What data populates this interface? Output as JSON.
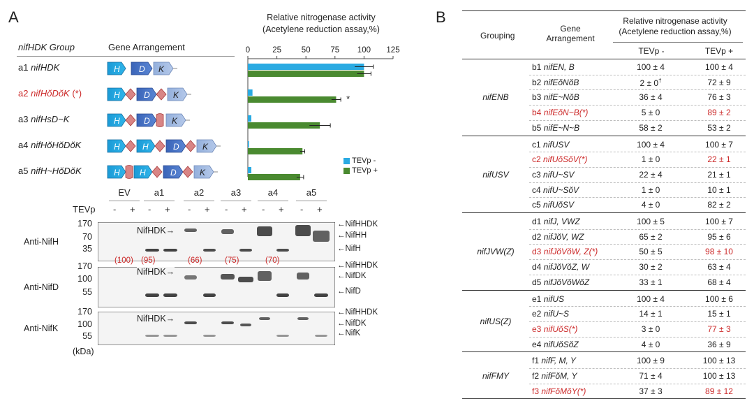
{
  "panel_a": {
    "letter": "A",
    "header_group": "nifHDK Group",
    "header_arrangement": "Gene Arrangement",
    "rows": [
      {
        "id": "a1",
        "name": "nifHDK",
        "suffix": "",
        "red": false
      },
      {
        "id": "a2",
        "name": "nifHŏDŏK",
        "suffix": " (*)",
        "red": true
      },
      {
        "id": "a3",
        "name": "nifHsD~K",
        "suffix": "",
        "red": false
      },
      {
        "id": "a4",
        "name": "nifHŏHŏDŏK",
        "suffix": "",
        "red": false
      },
      {
        "id": "a5",
        "name": "nifH~HŏDŏK",
        "suffix": "",
        "red": false
      }
    ],
    "gene_letters": {
      "h": "H",
      "d": "D",
      "k": "K"
    },
    "significance_mark": "*"
  },
  "chart_data": {
    "type": "bar",
    "orientation": "horizontal",
    "title": "Relative nitrogenase activity",
    "subtitle": "(Acetylene reduction assay,%)",
    "xlim": [
      0,
      125
    ],
    "ticks": [
      "0",
      "25",
      "50",
      "75",
      "100",
      "125"
    ],
    "tick_values": [
      0,
      25,
      50,
      75,
      100,
      125
    ],
    "categories": [
      "a1 nifHDK",
      "a2 nifHŏDŏK",
      "a3 nifHsD~K",
      "a4 nifHŏHŏDŏK",
      "a5 nifH~HŏDŏK"
    ],
    "series": [
      {
        "name": "TEVp -",
        "color": "#2aaae2",
        "values": [
          100,
          4,
          3,
          1,
          3
        ],
        "errors": [
          8,
          0,
          0,
          0,
          0
        ]
      },
      {
        "name": "TEVp +",
        "color": "#4a8a30",
        "values": [
          100,
          76,
          62,
          47,
          45
        ],
        "errors": [
          6,
          4,
          9,
          2,
          3
        ]
      }
    ],
    "legend_position": "bottom-right"
  },
  "blot": {
    "lanes": [
      "EV",
      "a1",
      "a2",
      "a3",
      "a4",
      "a5"
    ],
    "tevp_label": "TEVp",
    "minus": "-",
    "plus": "+",
    "kda": "(kDa)",
    "panels": [
      {
        "antibody": "Anti-NifH",
        "mw": [
          "170",
          "70",
          "35"
        ],
        "inner_label": "NifHDK",
        "bands": [
          "NifHHDK",
          "NifHH",
          "NifH"
        ]
      },
      {
        "antibody": "Anti-NifD",
        "mw": [
          "170",
          "100",
          "55"
        ],
        "inner_label": "NifHDK",
        "bands": [
          "NifHHDK",
          "NifDK",
          "NifD"
        ]
      },
      {
        "antibody": "Anti-NifK",
        "mw": [
          "170",
          "100",
          "55"
        ],
        "inner_label": "NifHDK",
        "bands": [
          "NifHHDK",
          "NifDK",
          "NifK"
        ]
      }
    ],
    "percentages": [
      "(100)",
      "(95)",
      "(66)",
      "(75)",
      "(70)"
    ]
  },
  "panel_b": {
    "letter": "B",
    "col_grouping": "Grouping",
    "col_gene": "Gene Arrangement",
    "col_activity_1": "Relative nitrogenase activity",
    "col_activity_2": "(Acetylene reduction assay,%)",
    "col_tevp_minus": "TEVp -",
    "col_tevp_plus": "TEVp +",
    "groups": [
      {
        "name": "nifENB",
        "rows": [
          {
            "id": "b1",
            "gene": "nifEN, B",
            "minus": "100 ± 4",
            "plus": "100 ± 4",
            "red": false
          },
          {
            "id": "b2",
            "gene": "nifEŏNŏB",
            "minus": "2 ± 0",
            "dagger": "†",
            "plus": "72 ± 9",
            "red": false
          },
          {
            "id": "b3",
            "gene": "nifE~NŏB",
            "minus": "36 ± 4",
            "plus": "76 ± 3",
            "red": false
          },
          {
            "id": "b4",
            "gene": "nifEŏN~B(*)",
            "minus": "5 ± 0",
            "plus": "89 ± 2",
            "red": true
          },
          {
            "id": "b5",
            "gene": "nifE~N~B",
            "minus": "58 ± 2",
            "plus": "53 ± 2",
            "red": false
          }
        ]
      },
      {
        "name": "nifUSV",
        "rows": [
          {
            "id": "c1",
            "gene": "nifUSV",
            "minus": "100 ± 4",
            "plus": "100 ± 7",
            "red": false
          },
          {
            "id": "c2",
            "gene": "nifUŏSŏV(*)",
            "minus": "1 ± 0",
            "plus": "22 ± 1",
            "red": true
          },
          {
            "id": "c3",
            "gene": "nifU~SV",
            "minus": "22 ± 4",
            "plus": "21 ± 1",
            "red": false
          },
          {
            "id": "c4",
            "gene": "nifU~SŏV",
            "minus": "1 ± 0",
            "plus": "10 ± 1",
            "red": false
          },
          {
            "id": "c5",
            "gene": "nifUŏSV",
            "minus": "4 ± 0",
            "plus": "82 ± 2",
            "red": false
          }
        ]
      },
      {
        "name": "nifJVW(Z)",
        "rows": [
          {
            "id": "d1",
            "gene": "nifJ, VWZ",
            "minus": "100 ± 5",
            "plus": "100 ± 7",
            "red": false
          },
          {
            "id": "d2",
            "gene": "nifJŏV, WZ",
            "minus": "65 ± 2",
            "plus": "95 ± 6",
            "red": false
          },
          {
            "id": "d3",
            "gene": "nifJŏVŏW, Z(*)",
            "minus": "50 ± 5",
            "plus": "98 ± 10",
            "red": true
          },
          {
            "id": "d4",
            "gene": "nifJŏVŏZ, W",
            "minus": "30 ± 2",
            "plus": "63 ± 4",
            "red": false
          },
          {
            "id": "d5",
            "gene": "nifJŏVŏWŏZ",
            "minus": "33 ± 1",
            "plus": "68 ± 4",
            "red": false
          }
        ]
      },
      {
        "name": "nifUS(Z)",
        "rows": [
          {
            "id": "e1",
            "gene": "nifUS",
            "minus": "100 ± 4",
            "plus": "100 ± 6",
            "red": false
          },
          {
            "id": "e2",
            "gene": "nifU~S",
            "minus": "14 ± 1",
            "plus": "15 ± 1",
            "red": false
          },
          {
            "id": "e3",
            "gene": "nifUŏS(*)",
            "minus": "3 ± 0",
            "plus": "77 ± 3",
            "red": true
          },
          {
            "id": "e4",
            "gene": "nifUŏSŏZ",
            "minus": "4 ± 0",
            "plus": "36 ± 9",
            "red": false
          }
        ]
      },
      {
        "name": "nifFMY",
        "rows": [
          {
            "id": "f1",
            "gene": "nifF, M, Y",
            "minus": "100 ± 9",
            "plus": "100 ± 13",
            "red": false
          },
          {
            "id": "f2",
            "gene": "nifFŏM, Y",
            "minus": "71 ± 4",
            "plus": "100 ± 13",
            "red": false
          },
          {
            "id": "f3",
            "gene": "nifFŏMŏY(*)",
            "minus": "37 ± 3",
            "plus": "89 ± 12",
            "red": true
          }
        ]
      }
    ]
  }
}
